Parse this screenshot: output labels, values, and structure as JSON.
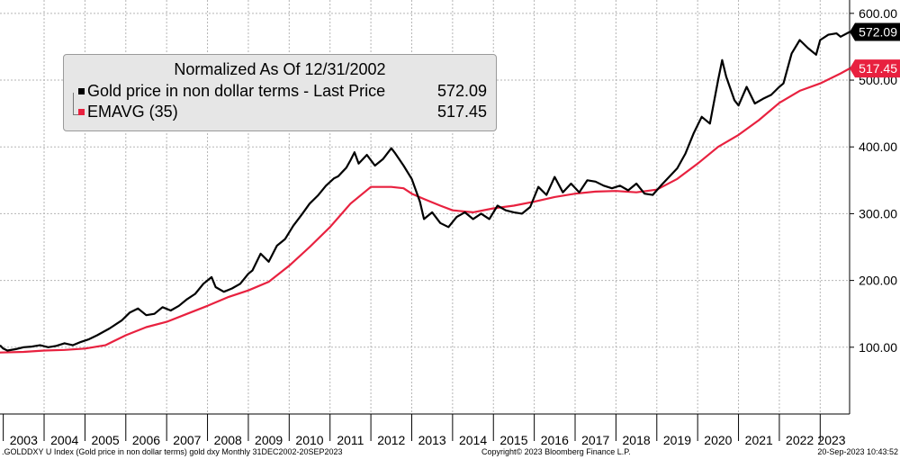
{
  "chart_data": {
    "type": "line",
    "title": "Normalized As Of 12/31/2002",
    "x_range": [
      2002.92,
      2023.72
    ],
    "ylim": [
      0,
      620
    ],
    "y_ticks": [
      100,
      200,
      300,
      400,
      500,
      600
    ],
    "y_tick_labels": [
      "100.00",
      "200.00",
      "300.00",
      "400.00",
      "500.00",
      "600.00"
    ],
    "x_tick_labels": [
      "2003",
      "2004",
      "2005",
      "2006",
      "2007",
      "2008",
      "2009",
      "2010",
      "2011",
      "2012",
      "2013",
      "2014",
      "2015",
      "2016",
      "2017",
      "2018",
      "2019",
      "2020",
      "2021",
      "2022",
      "2023"
    ],
    "grid": true,
    "series": [
      {
        "name": "Gold price in non dollar terms - Last Price",
        "last_value": 572.09,
        "last_label": "572.09",
        "color": "#000000",
        "x": [
          2002.92,
          2003.0,
          2003.1,
          2003.3,
          2003.5,
          2003.7,
          2003.9,
          2004.1,
          2004.3,
          2004.5,
          2004.7,
          2004.9,
          2005.1,
          2005.3,
          2005.6,
          2005.9,
          2006.1,
          2006.3,
          2006.5,
          2006.7,
          2006.9,
          2007.1,
          2007.3,
          2007.5,
          2007.7,
          2007.9,
          2008.1,
          2008.2,
          2008.4,
          2008.6,
          2008.8,
          2009.0,
          2009.1,
          2009.3,
          2009.5,
          2009.7,
          2009.9,
          2010.1,
          2010.3,
          2010.5,
          2010.7,
          2010.9,
          2011.1,
          2011.2,
          2011.4,
          2011.5,
          2011.6,
          2011.7,
          2011.9,
          2012.1,
          2012.3,
          2012.5,
          2012.6,
          2012.8,
          2013.0,
          2013.2,
          2013.3,
          2013.5,
          2013.7,
          2013.9,
          2014.1,
          2014.3,
          2014.5,
          2014.7,
          2014.9,
          2015.1,
          2015.3,
          2015.5,
          2015.7,
          2015.9,
          2016.1,
          2016.3,
          2016.5,
          2016.7,
          2016.9,
          2017.1,
          2017.3,
          2017.5,
          2017.7,
          2017.9,
          2018.1,
          2018.3,
          2018.5,
          2018.7,
          2018.9,
          2019.1,
          2019.3,
          2019.5,
          2019.7,
          2019.9,
          2020.1,
          2020.3,
          2020.5,
          2020.6,
          2020.7,
          2020.9,
          2021.0,
          2021.2,
          2021.4,
          2021.6,
          2021.8,
          2022.0,
          2022.1,
          2022.3,
          2022.5,
          2022.7,
          2022.9,
          2023.0,
          2023.2,
          2023.4,
          2023.5,
          2023.72
        ],
        "values": [
          103,
          98,
          95,
          97,
          100,
          101,
          103,
          100,
          102,
          106,
          103,
          108,
          112,
          118,
          128,
          140,
          152,
          158,
          148,
          150,
          160,
          155,
          162,
          172,
          180,
          195,
          205,
          190,
          183,
          188,
          195,
          210,
          215,
          240,
          228,
          252,
          262,
          282,
          298,
          315,
          327,
          342,
          353,
          356,
          369,
          380,
          392,
          375,
          388,
          372,
          382,
          398,
          390,
          372,
          352,
          318,
          292,
          302,
          286,
          280,
          295,
          302,
          292,
          300,
          292,
          312,
          305,
          302,
          300,
          310,
          340,
          328,
          355,
          332,
          345,
          332,
          350,
          348,
          342,
          338,
          342,
          335,
          345,
          330,
          328,
          342,
          355,
          368,
          390,
          420,
          445,
          435,
          500,
          530,
          505,
          470,
          462,
          490,
          465,
          472,
          478,
          490,
          495,
          540,
          560,
          548,
          538,
          560,
          568,
          570,
          565,
          572.09
        ]
      },
      {
        "name": "EMAVG (35)",
        "last_value": 517.45,
        "last_label": "517.45",
        "color": "#e8213f",
        "x": [
          2002.92,
          2003.5,
          2004.0,
          2004.5,
          2005.0,
          2005.5,
          2006.0,
          2006.5,
          2007.0,
          2007.5,
          2008.0,
          2008.5,
          2009.0,
          2009.5,
          2010.0,
          2010.5,
          2011.0,
          2011.5,
          2012.0,
          2012.5,
          2012.8,
          2013.0,
          2013.3,
          2013.7,
          2014.0,
          2014.5,
          2015.0,
          2015.5,
          2016.0,
          2016.5,
          2017.0,
          2017.5,
          2018.0,
          2018.5,
          2019.0,
          2019.5,
          2020.0,
          2020.5,
          2021.0,
          2021.5,
          2022.0,
          2022.5,
          2023.0,
          2023.5,
          2023.72
        ],
        "values": [
          92,
          93,
          95,
          96,
          98,
          103,
          118,
          130,
          138,
          150,
          162,
          175,
          185,
          198,
          222,
          250,
          280,
          315,
          340,
          340,
          338,
          330,
          322,
          312,
          305,
          302,
          308,
          312,
          318,
          325,
          330,
          333,
          334,
          332,
          336,
          352,
          375,
          400,
          418,
          440,
          466,
          484,
          495,
          510,
          517.45
        ]
      }
    ],
    "footer_left": ".GOLDDXY U Index (Gold price in non dollar terms) gold dxy  Monthly 31DEC2002-20SEP2023",
    "footer_center": "Copyright© 2023 Bloomberg Finance L.P.",
    "footer_right": "20-Sep-2023 10:43:52"
  }
}
